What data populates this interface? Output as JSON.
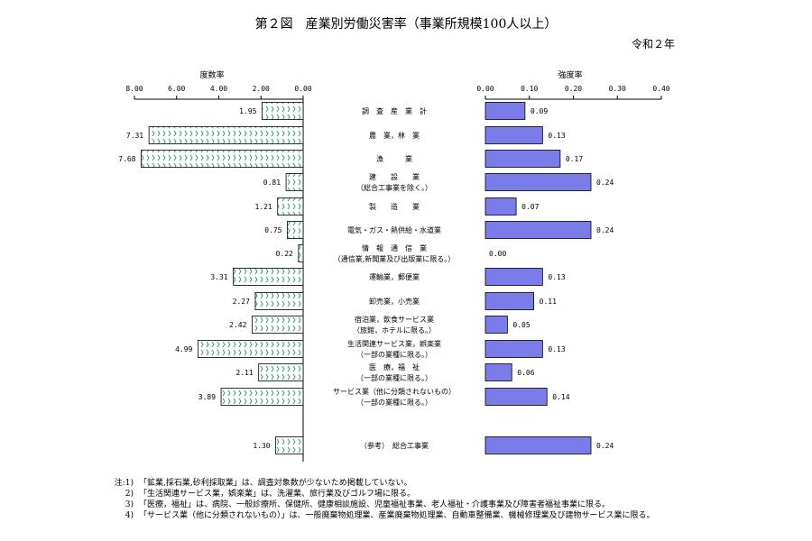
{
  "title": "第２図　産業別労働災害率（事業所規模100人以上）",
  "era": "令和２年",
  "chart_data": [
    {
      "type": "bar",
      "orientation": "horizontal",
      "direction": "right-to-left",
      "title": "度数率",
      "xlim": [
        0,
        8
      ],
      "ticks": [
        "8.00",
        "6.00",
        "4.00",
        "2.00",
        "0.00"
      ],
      "tick_values": [
        8,
        6,
        4,
        2,
        0
      ],
      "bar_fill": "hatched-green",
      "values": [
        1.95,
        7.31,
        7.68,
        0.81,
        1.21,
        0.75,
        0.22,
        3.31,
        2.27,
        2.42,
        4.99,
        2.11,
        3.89,
        1.3
      ],
      "value_labels": [
        "1.95",
        "7.31",
        "7.68",
        "0.81",
        "1.21",
        "0.75",
        "0.22",
        "3.31",
        "2.27",
        "2.42",
        "4.99",
        "2.11",
        "3.89",
        "1.30"
      ]
    },
    {
      "type": "bar",
      "orientation": "horizontal",
      "title": "強度率",
      "xlim": [
        0,
        0.4
      ],
      "ticks": [
        "0.00",
        "0.10",
        "0.20",
        "0.30",
        "0.40"
      ],
      "tick_values": [
        0,
        0.1,
        0.2,
        0.3,
        0.4
      ],
      "bar_color": "#7b7bea",
      "values": [
        0.09,
        0.13,
        0.17,
        0.24,
        0.07,
        0.24,
        0.0,
        0.13,
        0.11,
        0.05,
        0.13,
        0.06,
        0.14,
        0.24
      ],
      "value_labels": [
        "0.09",
        "0.13",
        "0.17",
        "0.24",
        "0.07",
        "0.24",
        "0.00",
        "0.13",
        "0.11",
        "0.05",
        "0.13",
        "0.06",
        "0.14",
        "0.24"
      ]
    }
  ],
  "categories": [
    [
      "調　査　産　業　計"
    ],
    [
      "農　業，林　業"
    ],
    [
      "漁　　　業"
    ],
    [
      "建　　設　　業",
      "（総合工事業を除く。）"
    ],
    [
      "製　　造　　業"
    ],
    [
      "電気・ガス・熱供給・水道業"
    ],
    [
      "情　報　通　信　業",
      "（通信業,新聞業及び出版業に限る。）"
    ],
    [
      "運輸業，郵便業"
    ],
    [
      "卸売業，小売業"
    ],
    [
      "宿泊業，飲食サービス業",
      "（旅館，ホテルに限る。）"
    ],
    [
      "生活関連サービス業，娯楽業",
      "（一部の業種に限る。）"
    ],
    [
      "医　療，福　祉",
      "（一部の業種に限る。）"
    ],
    [
      "サービス業（他に分類されないもの）",
      "（一部の業種に限る。）"
    ],
    [
      "（参考）　総合工事業"
    ]
  ],
  "notes": [
    {
      "label": "注:1)",
      "text": "「鉱業,採石業,砂利採取業」は、調査対象数が少ないため掲載していない。"
    },
    {
      "label": "2)",
      "text": "「生活関連サービス業，娯楽業」は、洗濯業、旅行業及びゴルフ場に限る。"
    },
    {
      "label": "3)",
      "text": "「医療，福祉」は、病院、一般診療所、保健所、健康相談施設、児童福祉事業、老人福祉・介護事業及び障害者福祉事業に限る。"
    },
    {
      "label": "4)",
      "text": "「サービス業（他に分類されないもの）」は、一般廃棄物処理業、産業廃棄物処理業、自動車整備業、機械修理業及び建物サービス業に限る。"
    }
  ]
}
